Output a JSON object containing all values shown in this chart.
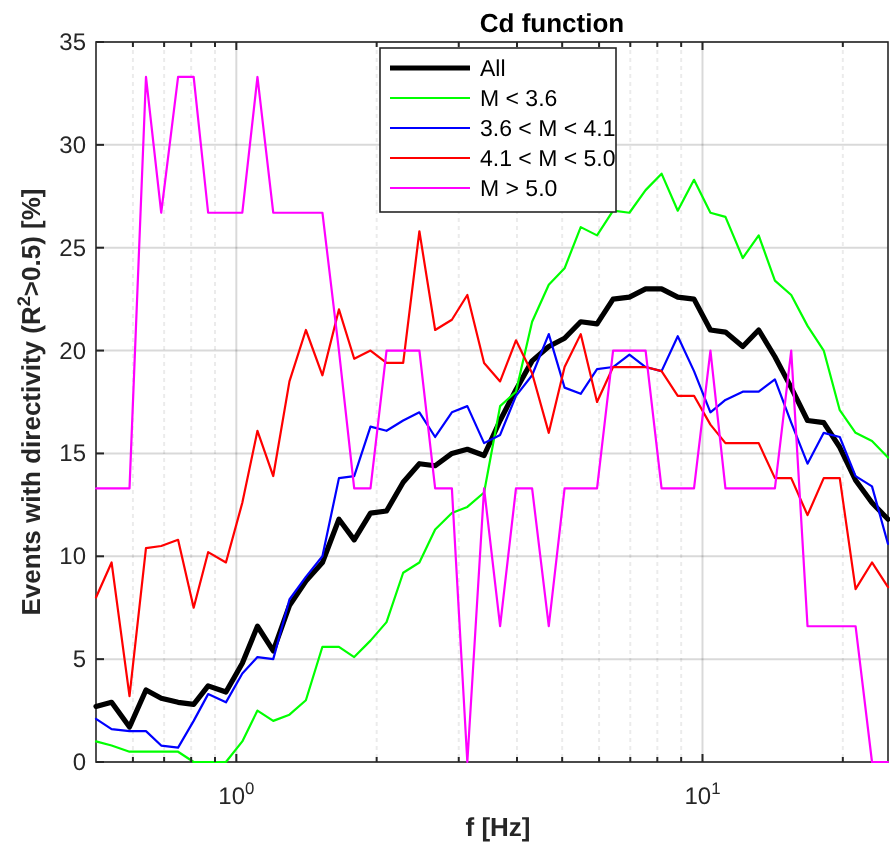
{
  "chart_data": {
    "type": "line",
    "title": "Cd function",
    "xlabel": "f [Hz]",
    "ylabel": "Events with directivity (R$^{2}$>0.5) [%]",
    "log": "x",
    "grid": true,
    "legend": "top right",
    "line_style": "solid",
    "marker": "none",
    "xlim": [
      0.5,
      25
    ],
    "ylim": [
      0,
      35
    ],
    "xticks": [
      {
        "value": 0.6,
        "label": null
      },
      {
        "value": 0.7,
        "label": null
      },
      {
        "value": 0.8,
        "label": null
      },
      {
        "value": 0.9,
        "label": null
      },
      {
        "value": 1,
        "label": "10$^{0}$"
      },
      {
        "value": 2,
        "label": null
      },
      {
        "value": 3,
        "label": null
      },
      {
        "value": 4,
        "label": null
      },
      {
        "value": 5,
        "label": null
      },
      {
        "value": 6,
        "label": null
      },
      {
        "value": 7,
        "label": null
      },
      {
        "value": 8,
        "label": null
      },
      {
        "value": 9,
        "label": null
      },
      {
        "value": 10,
        "label": "10$^{1}$"
      },
      {
        "value": 20,
        "label": null
      }
    ],
    "yticks": [
      0,
      5,
      10,
      15,
      20,
      25,
      30,
      35
    ],
    "x": [
      0.5,
      0.54,
      0.59,
      0.64,
      0.69,
      0.75,
      0.81,
      0.87,
      0.95,
      1.03,
      1.11,
      1.2,
      1.3,
      1.41,
      1.53,
      1.66,
      1.79,
      1.94,
      2.1,
      2.28,
      2.47,
      2.67,
      2.9,
      3.13,
      3.4,
      3.68,
      3.98,
      4.31,
      4.68,
      5.06,
      5.48,
      5.94,
      6.43,
      6.97,
      7.55,
      8.17,
      8.85,
      9.59,
      10.4,
      11.2,
      12.2,
      13.2,
      14.3,
      15.5,
      16.8,
      18.2,
      19.7,
      21.3,
      23.1,
      25
    ],
    "series": [
      {
        "name": "All",
        "color": "#000000",
        "values": [
          2.7,
          2.9,
          1.7,
          3.5,
          3.1,
          2.9,
          2.8,
          3.7,
          3.4,
          4.8,
          6.6,
          5.4,
          7.6,
          8.8,
          9.7,
          11.8,
          10.8,
          12.1,
          12.2,
          13.6,
          14.5,
          14.4,
          15.0,
          15.2,
          14.9,
          16.6,
          18.1,
          19.5,
          20.2,
          20.6,
          21.4,
          21.3,
          22.5,
          22.6,
          23.0,
          23.0,
          22.6,
          22.5,
          21.0,
          20.9,
          20.2,
          21.0,
          19.7,
          18.2,
          16.6,
          16.5,
          15.3,
          13.7,
          12.6,
          11.8
        ]
      },
      {
        "name": "M < 3.6",
        "color": "#00ff00",
        "values": [
          1.0,
          0.8,
          0.5,
          0.5,
          0.5,
          0.5,
          0,
          0,
          0,
          1.0,
          2.5,
          2.0,
          2.3,
          3.0,
          5.6,
          5.6,
          5.1,
          5.9,
          6.8,
          9.2,
          9.7,
          11.3,
          12.1,
          12.4,
          13.1,
          17.3,
          18.0,
          21.4,
          23.2,
          24.0,
          26.0,
          25.6,
          26.8,
          26.7,
          27.8,
          28.6,
          26.8,
          28.3,
          26.7,
          26.5,
          24.5,
          25.6,
          23.4,
          22.7,
          21.2,
          20.0,
          17.1,
          16.0,
          15.6,
          14.8
        ]
      },
      {
        "name": "3.6 < M < 4.1",
        "color": "#0000ff",
        "values": [
          2.1,
          1.6,
          1.5,
          1.5,
          0.8,
          0.7,
          2.0,
          3.3,
          2.9,
          4.3,
          5.1,
          5.0,
          7.9,
          9.0,
          10.0,
          13.8,
          13.9,
          16.3,
          16.1,
          16.6,
          17.0,
          15.8,
          17.0,
          17.3,
          15.5,
          15.9,
          17.8,
          18.8,
          20.8,
          18.2,
          17.9,
          19.1,
          19.2,
          19.8,
          19.2,
          19.0,
          20.7,
          19.0,
          17.0,
          17.6,
          18.0,
          18.0,
          18.6,
          16.5,
          14.5,
          16.0,
          15.8,
          13.9,
          13.4,
          10.6
        ]
      },
      {
        "name": "4.1 < M < 5.0",
        "color": "#ff0000",
        "values": [
          8.0,
          9.7,
          3.2,
          10.4,
          10.5,
          10.8,
          7.5,
          10.2,
          9.7,
          12.6,
          16.1,
          13.9,
          18.5,
          21.0,
          18.8,
          22.0,
          19.6,
          20.0,
          19.4,
          19.4,
          25.8,
          21.0,
          21.5,
          22.7,
          19.4,
          18.5,
          20.5,
          18.9,
          16.0,
          19.2,
          20.8,
          17.5,
          19.2,
          19.2,
          19.2,
          19.0,
          17.8,
          17.8,
          16.4,
          15.5,
          15.5,
          15.5,
          13.8,
          13.8,
          12.0,
          13.8,
          13.8,
          8.4,
          9.7,
          8.5
        ]
      },
      {
        "name": "M > 5.0",
        "color": "#ff00ff",
        "values": [
          13.3,
          13.3,
          13.3,
          33.3,
          26.7,
          33.3,
          33.3,
          26.7,
          26.7,
          26.7,
          33.3,
          26.7,
          26.7,
          26.7,
          26.7,
          20.0,
          13.3,
          13.3,
          20.0,
          20.0,
          20.0,
          13.3,
          13.3,
          0,
          13.3,
          6.6,
          13.3,
          13.3,
          6.6,
          13.3,
          13.3,
          13.3,
          20.0,
          20.0,
          20.0,
          13.3,
          13.3,
          13.3,
          20.0,
          13.3,
          13.3,
          13.3,
          13.3,
          20.0,
          6.6,
          6.6,
          6.6,
          6.6,
          0,
          0
        ]
      }
    ]
  }
}
